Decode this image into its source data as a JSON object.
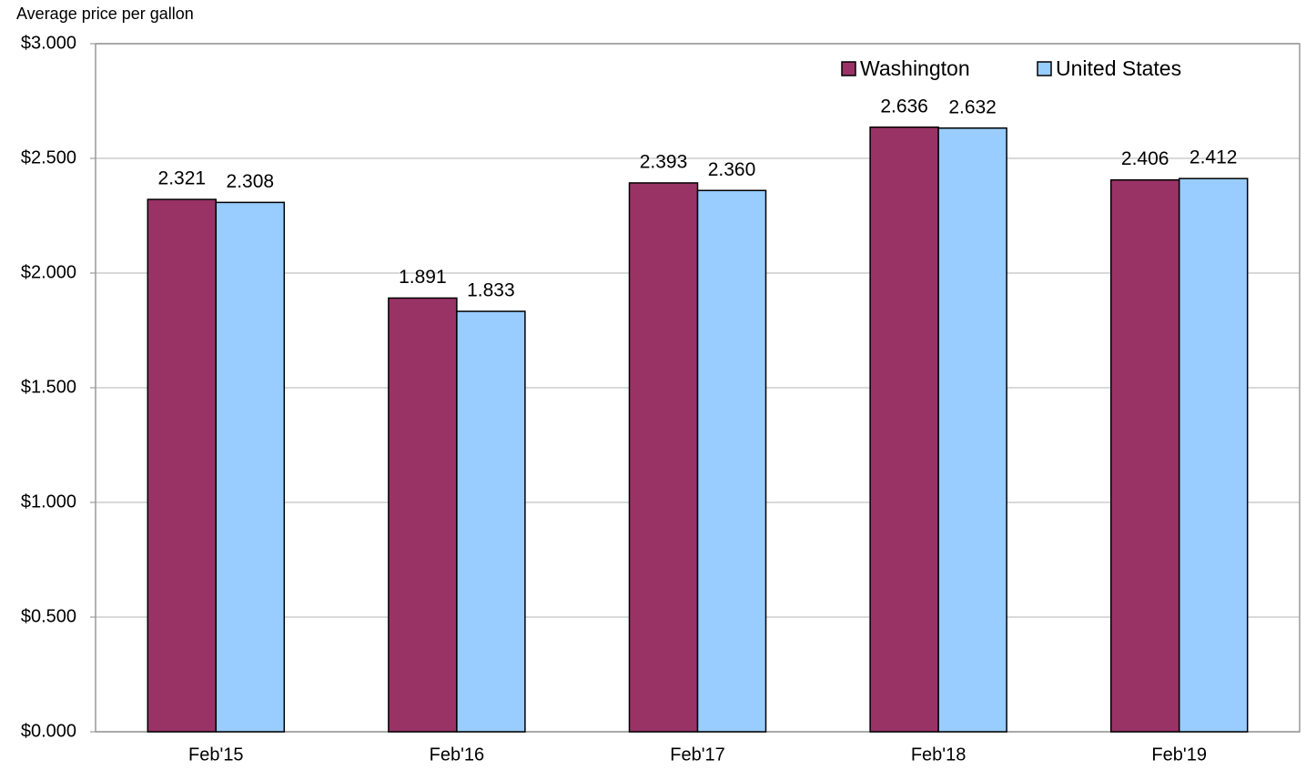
{
  "chart_data": {
    "type": "bar",
    "y_axis_label": "Average price per gallon",
    "categories": [
      "Feb'15",
      "Feb'16",
      "Feb'17",
      "Feb'18",
      "Feb'19"
    ],
    "series": [
      {
        "name": "Washington",
        "color": "#993366",
        "values": [
          2.321,
          1.891,
          2.393,
          2.636,
          2.406
        ],
        "value_labels": [
          "2.321",
          "1.891",
          "2.393",
          "2.636",
          "2.406"
        ]
      },
      {
        "name": "United States",
        "color": "#99ccff",
        "values": [
          2.308,
          1.833,
          2.36,
          2.632,
          2.412
        ],
        "value_labels": [
          "2.308",
          "1.833",
          "2.360",
          "2.632",
          "2.412"
        ]
      }
    ],
    "ylim": [
      0,
      3
    ],
    "yticks": [
      {
        "value": 0,
        "label": "$0.000"
      },
      {
        "value": 0.5,
        "label": "$0.500"
      },
      {
        "value": 1,
        "label": "$1.000"
      },
      {
        "value": 1.5,
        "label": "$1.500"
      },
      {
        "value": 2,
        "label": "$2.000"
      },
      {
        "value": 2.5,
        "label": "$2.500"
      },
      {
        "value": 3,
        "label": "$3.000"
      }
    ],
    "grid": true,
    "legend_position": "top-right"
  }
}
